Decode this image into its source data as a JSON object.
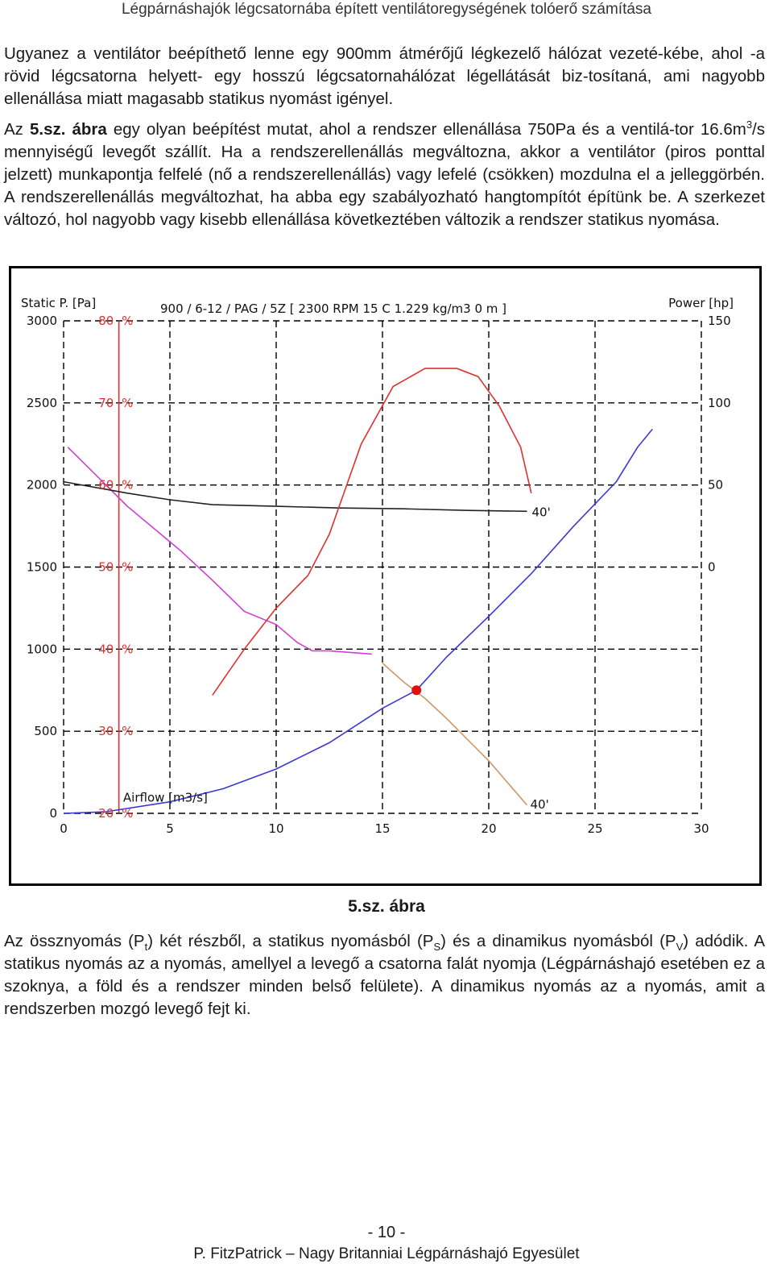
{
  "header": {
    "title": "Légpárnáshajók légcsatornába épített ventilátoregységének tolóerő számítása"
  },
  "paragraph1": {
    "text": "Ugyanez a ventilátor beépíthető lenne egy 900mm átmérőjű légkezelő hálózat vezeté-kébe, ahol -a rövid légcsatorna helyett- egy hosszú légcsatornahálózat légellátását biz-tosítaná, ami nagyobb ellenállása miatt magasabb statikus nyomást igényel."
  },
  "paragraph2": {
    "az": "Az",
    "ref": "5.sz. ábra",
    "part1": " egy olyan beépítést mutat, ahol a rendszer ellenállása 750Pa és a ventilá-tor 16.6m",
    "sup": "3",
    "part2": "/s mennyiségű levegőt szállít. Ha a rendszerellenállás megváltozna, akkor a ventilátor (piros ponttal jelzett) munkapontja felfelé (nő a rendszerellenállás) vagy lefelé (csökken) mozdulna el a jelleggörbén. A rendszerellenállás megváltozhat, ha abba egy szabályozható hangtompítót építünk be. A szerkezet változó, hol nagyobb vagy kisebb ellenállása következtében változik a rendszer statikus nyomása."
  },
  "figure": {
    "caption": "5.sz. ábra"
  },
  "paragraph3": {
    "p1": "Az össznyomás (P",
    "sub_t": "t",
    "p2": ") két részből, a statikus nyomásból (P",
    "sub_s": "S",
    "p3": ") és a dinamikus nyomásból (P",
    "sub_v": "V",
    "p4": ") adódik. A statikus nyomás az a nyomás, amellyel a levegő a csatorna falát nyomja (Légpárnáshajó esetében ez a szoknya, a föld és a rendszer minden belső felülete). A dinamikus nyomás az a nyomás, amit a rendszerben mozgó levegő fejt ki."
  },
  "footer": {
    "page_number": "- 10 -",
    "author": "P. FitzPatrick – Nagy Britanniai Légpárnáshajó Egyesület"
  },
  "chart_data": {
    "type": "line",
    "title": "900 / 6-12 / PAG / 5Z     [ 2300 RPM   15 C   1.229 kg/m3   0 m ]",
    "ylabel": "Static P. [Pa]",
    "ylabel_right": "Power [hp]",
    "xlabel": "Airflow [m3/s]",
    "xlim": [
      0,
      30
    ],
    "ylim": [
      0,
      3000
    ],
    "x_ticks": [
      "0",
      "5",
      "10",
      "15",
      "20",
      "25",
      "30"
    ],
    "y_ticks": [
      "0",
      "500",
      "1000",
      "1500",
      "2000",
      "2500",
      "3000"
    ],
    "pct_ticks": [
      "20",
      "30",
      "40",
      "50",
      "60",
      "70",
      "80"
    ],
    "pct_unit": "%",
    "right_ticks": [
      "0",
      "50",
      "100",
      "150"
    ],
    "grid": true,
    "colors": {
      "static_pressure": "#d040d0",
      "static_pressure_tail": "#cc9966",
      "power": "#222222",
      "efficiency": "#e03030",
      "system": "#3a3ad0",
      "operating_point": "#e01010"
    },
    "series": [
      {
        "key": "static_pressure",
        "values": [
          [
            0.2,
            2230
          ],
          [
            3.0,
            1870
          ],
          [
            5.5,
            1600
          ],
          [
            7.0,
            1420
          ],
          [
            8.5,
            1230
          ],
          [
            10.0,
            1150
          ],
          [
            11.0,
            1040
          ],
          [
            11.7,
            990
          ],
          [
            12.5,
            990
          ],
          [
            13.5,
            980
          ],
          [
            14.5,
            970
          ]
        ]
      },
      {
        "key": "static_pressure_tail",
        "values": [
          [
            15.0,
            915
          ],
          [
            16.0,
            800
          ],
          [
            17.0,
            700
          ],
          [
            18.0,
            580
          ],
          [
            19.0,
            450
          ],
          [
            20.0,
            320
          ],
          [
            21.0,
            170
          ],
          [
            21.8,
            50
          ]
        ]
      },
      {
        "key": "power",
        "values": [
          [
            0.0,
            2020
          ],
          [
            3.0,
            1950
          ],
          [
            5.0,
            1910
          ],
          [
            7.0,
            1880
          ],
          [
            10.0,
            1870
          ],
          [
            13.0,
            1860
          ],
          [
            16.0,
            1855
          ],
          [
            19.0,
            1845
          ],
          [
            21.8,
            1840
          ]
        ],
        "label": "40'"
      },
      {
        "key": "efficiency",
        "values": [
          [
            7.0,
            720
          ],
          [
            8.5,
            1000
          ],
          [
            10.0,
            1250
          ],
          [
            11.5,
            1450
          ],
          [
            12.5,
            1700
          ],
          [
            14.0,
            2250
          ],
          [
            15.5,
            2600
          ],
          [
            17.0,
            2710
          ],
          [
            18.5,
            2710
          ],
          [
            19.5,
            2660
          ],
          [
            20.5,
            2480
          ],
          [
            21.5,
            2230
          ],
          [
            22.0,
            1950
          ]
        ]
      },
      {
        "key": "system",
        "values": [
          [
            0.0,
            0
          ],
          [
            2.0,
            10
          ],
          [
            5.0,
            70
          ],
          [
            7.5,
            150
          ],
          [
            10.0,
            270
          ],
          [
            12.5,
            430
          ],
          [
            15.0,
            640
          ],
          [
            16.6,
            750
          ],
          [
            18.0,
            950
          ],
          [
            20.0,
            1200
          ],
          [
            22.0,
            1460
          ],
          [
            24.0,
            1750
          ],
          [
            26.0,
            2020
          ],
          [
            27.0,
            2230
          ],
          [
            27.7,
            2340
          ]
        ]
      }
    ],
    "operating_point": {
      "x": 16.6,
      "y": 750
    },
    "tail_label": "40'",
    "red_vertical_x": 2.6
  }
}
